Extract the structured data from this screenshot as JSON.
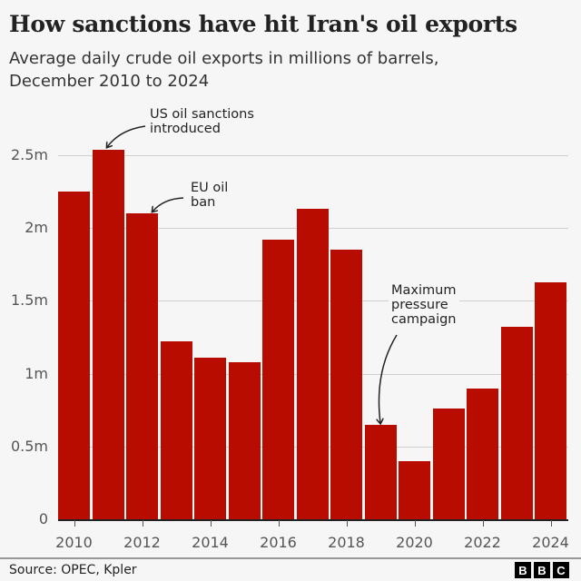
{
  "header": {
    "title": "How sanctions have hit Iran's oil exports",
    "subtitle_line1": "Average daily crude oil exports in millions of barrels,",
    "subtitle_line2": "December 2010 to 2024"
  },
  "y_axis": {
    "ticks": [
      {
        "label": "0",
        "value": 0
      },
      {
        "label": "0.5m",
        "value": 0.5
      },
      {
        "label": "1m",
        "value": 1
      },
      {
        "label": "1.5m",
        "value": 1.5
      },
      {
        "label": "2m",
        "value": 2
      },
      {
        "label": "2.5m",
        "value": 2.5
      }
    ]
  },
  "x_axis": {
    "labels": [
      "2010",
      "2012",
      "2014",
      "2016",
      "2018",
      "2020",
      "2022",
      "2024"
    ]
  },
  "annotations": {
    "us_sanctions": {
      "line1": "US oil sanctions",
      "line2": "introduced"
    },
    "eu_ban": {
      "line1": "EU oil",
      "line2": "ban"
    },
    "max_pressure": {
      "line1": "Maximum",
      "line2": "pressure",
      "line3": "campaign"
    }
  },
  "footer": {
    "source": "Source: OPEC, Kpler",
    "logo": [
      "B",
      "B",
      "C"
    ]
  },
  "colors": {
    "bar": "#b80c00",
    "background": "#f6f6f6",
    "gridline": "#cfcfcf"
  },
  "chart_data": {
    "type": "bar",
    "title": "How sanctions have hit Iran's oil exports",
    "subtitle": "Average daily crude oil exports in millions of barrels, December 2010 to 2024",
    "categories": [
      "2010",
      "2011",
      "2012",
      "2013",
      "2014",
      "2015",
      "2016",
      "2017",
      "2018",
      "2019",
      "2020",
      "2021",
      "2022",
      "2023",
      "2024"
    ],
    "values": [
      2.25,
      2.54,
      2.1,
      1.22,
      1.11,
      1.08,
      1.92,
      2.13,
      1.85,
      0.65,
      0.4,
      0.76,
      0.9,
      1.32,
      1.63
    ],
    "unit": "million barrels per day",
    "xlabel": "",
    "ylabel": "",
    "ylim": [
      0,
      2.5
    ],
    "yticks": [
      "0",
      "0.5m",
      "1m",
      "1.5m",
      "2m",
      "2.5m"
    ],
    "xticks": [
      "2010",
      "2012",
      "2014",
      "2016",
      "2018",
      "2020",
      "2022",
      "2024"
    ],
    "grid": true,
    "legend": null,
    "annotations": [
      {
        "text": "US oil sanctions introduced",
        "x": "2011"
      },
      {
        "text": "EU oil ban",
        "x": "2012"
      },
      {
        "text": "Maximum pressure campaign",
        "x": "2019"
      }
    ],
    "source": "Source: OPEC, Kpler"
  }
}
